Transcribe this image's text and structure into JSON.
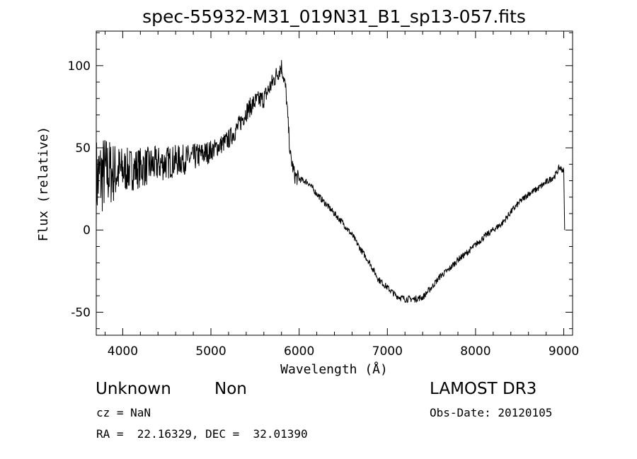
{
  "chart_data": {
    "type": "line",
    "title": "spec-55932-M31_019N31_B1_sp13-057.fits",
    "xlabel": "Wavelength (Å)",
    "ylabel": "Flux (relative)",
    "xlim": [
      3700,
      9100
    ],
    "ylim": [
      -64,
      121
    ],
    "xticks": [
      4000,
      5000,
      6000,
      7000,
      8000,
      9000
    ],
    "yticks": [
      -50,
      0,
      50,
      100
    ],
    "grid": false,
    "series": [
      {
        "name": "spectrum",
        "anchors": [
          [
            3700,
            30
          ],
          [
            3800,
            35
          ],
          [
            3900,
            35
          ],
          [
            4000,
            36
          ],
          [
            4200,
            38
          ],
          [
            4400,
            40
          ],
          [
            4600,
            42
          ],
          [
            4800,
            44
          ],
          [
            5000,
            48
          ],
          [
            5200,
            55
          ],
          [
            5300,
            62
          ],
          [
            5400,
            72
          ],
          [
            5500,
            78
          ],
          [
            5600,
            80
          ],
          [
            5700,
            90
          ],
          [
            5800,
            100
          ],
          [
            5850,
            85
          ],
          [
            5900,
            45
          ],
          [
            5950,
            33
          ],
          [
            6000,
            31
          ],
          [
            6100,
            29
          ],
          [
            6200,
            22
          ],
          [
            6300,
            16
          ],
          [
            6400,
            10
          ],
          [
            6500,
            4
          ],
          [
            6600,
            -3
          ],
          [
            6700,
            -12
          ],
          [
            6800,
            -20
          ],
          [
            6900,
            -30
          ],
          [
            7000,
            -35
          ],
          [
            7100,
            -40
          ],
          [
            7200,
            -42
          ],
          [
            7300,
            -42
          ],
          [
            7400,
            -41
          ],
          [
            7500,
            -35
          ],
          [
            7600,
            -28
          ],
          [
            7700,
            -24
          ],
          [
            7800,
            -18
          ],
          [
            7900,
            -14
          ],
          [
            8000,
            -9
          ],
          [
            8100,
            -4
          ],
          [
            8200,
            0
          ],
          [
            8300,
            4
          ],
          [
            8400,
            11
          ],
          [
            8500,
            17
          ],
          [
            8600,
            22
          ],
          [
            8700,
            25
          ],
          [
            8800,
            29
          ],
          [
            8900,
            33
          ],
          [
            8950,
            38
          ],
          [
            9000,
            36
          ],
          [
            9010,
            0
          ]
        ]
      }
    ]
  },
  "footer": {
    "object_class": "Unknown",
    "subclass": "Non",
    "survey": "LAMOST DR3",
    "cz": "cz = NaN",
    "obs_date": "Obs-Date: 20120105",
    "coords": "RA =  22.16329, DEC =  32.01390"
  }
}
